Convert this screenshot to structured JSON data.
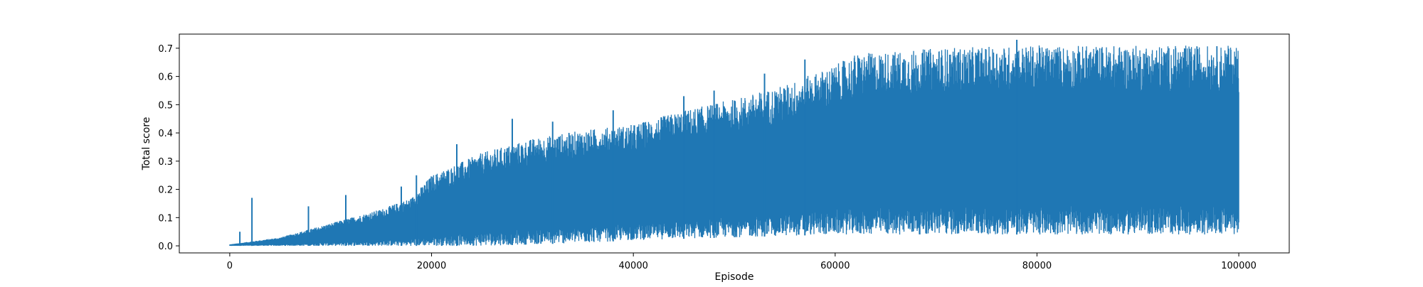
{
  "chart_data": {
    "type": "line",
    "title": "",
    "xlabel": "Episode",
    "ylabel": "Total score",
    "xlim": [
      -5000,
      105000
    ],
    "ylim": [
      -0.025,
      0.75
    ],
    "x_ticks": [
      0,
      20000,
      40000,
      60000,
      80000,
      100000
    ],
    "y_ticks": [
      0.0,
      0.1,
      0.2,
      0.3,
      0.4,
      0.5,
      0.6,
      0.7
    ],
    "grid": false,
    "legend": "none",
    "series": [
      {
        "color": "#1f77b4",
        "points": 100000,
        "x_range": [
          0,
          100000
        ],
        "envelope": {
          "x": [
            0,
            5000,
            10000,
            15000,
            18000,
            20000,
            25000,
            30000,
            35000,
            40000,
            45000,
            50000,
            55000,
            60000,
            62000,
            70000,
            80000,
            90000,
            100000
          ],
          "max": [
            0.005,
            0.03,
            0.08,
            0.13,
            0.17,
            0.25,
            0.33,
            0.38,
            0.41,
            0.43,
            0.48,
            0.52,
            0.57,
            0.64,
            0.68,
            0.7,
            0.71,
            0.71,
            0.71
          ],
          "min": [
            0.0,
            0.0,
            0.0,
            0.0,
            0.0,
            0.0,
            0.0,
            0.005,
            0.01,
            0.02,
            0.025,
            0.03,
            0.035,
            0.04,
            0.04,
            0.04,
            0.04,
            0.04,
            0.04
          ]
        },
        "spikes": [
          {
            "x": 1000,
            "y": 0.05
          },
          {
            "x": 2200,
            "y": 0.17
          },
          {
            "x": 7800,
            "y": 0.14
          },
          {
            "x": 11500,
            "y": 0.18
          },
          {
            "x": 17000,
            "y": 0.21
          },
          {
            "x": 18500,
            "y": 0.25
          },
          {
            "x": 22500,
            "y": 0.36
          },
          {
            "x": 28000,
            "y": 0.45
          },
          {
            "x": 32000,
            "y": 0.44
          },
          {
            "x": 38000,
            "y": 0.48
          },
          {
            "x": 45000,
            "y": 0.53
          },
          {
            "x": 48000,
            "y": 0.55
          },
          {
            "x": 53000,
            "y": 0.61
          },
          {
            "x": 57000,
            "y": 0.66
          },
          {
            "x": 78000,
            "y": 0.73
          }
        ]
      }
    ]
  }
}
